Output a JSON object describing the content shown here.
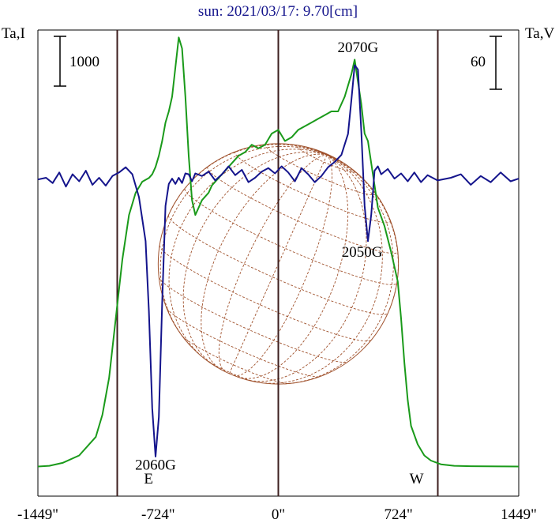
{
  "chart_data": {
    "type": "line",
    "title": "sun: 2021/03/17: 9.70[cm]",
    "left_axis_label": "Ta,I",
    "right_axis_label": "Ta,V",
    "left_scale_label": "1000",
    "right_scale_label": "60",
    "x_ticks": [
      {
        "value": -1449,
        "label": "-1449\""
      },
      {
        "value": -724,
        "label": "-724\""
      },
      {
        "value": 0,
        "label": "0\""
      },
      {
        "value": 724,
        "label": "724\""
      },
      {
        "value": 1449,
        "label": "1449\""
      }
    ],
    "xlim": [
      -1449,
      1449
    ],
    "limb_markers": [
      {
        "value": -724,
        "label": "E"
      },
      {
        "value": 724,
        "label": "W"
      }
    ],
    "annotations": [
      {
        "text": "2060G",
        "x": -740,
        "y": -3300
      },
      {
        "text": "2070G",
        "x": 480,
        "y": 1450
      },
      {
        "text": "2050G",
        "x": 505,
        "y": -880
      }
    ],
    "solar_disk": {
      "radius_arcsec": 724,
      "color": "#a0522d"
    },
    "series": [
      {
        "name": "I",
        "color": "#1a9a1a",
        "ylim": [
          -400,
          5900
        ],
        "x": [
          -1449,
          -1380,
          -1300,
          -1200,
          -1100,
          -1060,
          -1020,
          -980,
          -940,
          -900,
          -860,
          -820,
          -780,
          -760,
          -740,
          -720,
          -700,
          -680,
          -660,
          -640,
          -620,
          -600,
          -580,
          -560,
          -540,
          -520,
          -500,
          -480,
          -460,
          -440,
          -420,
          -400,
          -360,
          -320,
          -280,
          -240,
          -200,
          -160,
          -120,
          -80,
          -40,
          0,
          40,
          80,
          120,
          160,
          200,
          240,
          280,
          320,
          360,
          400,
          440,
          460,
          480,
          500,
          520,
          540,
          560,
          580,
          600,
          640,
          680,
          700,
          720,
          740,
          760,
          780,
          800,
          840,
          880,
          920,
          980,
          1060,
          1160,
          1260,
          1360,
          1449
        ],
        "values": [
          0,
          10,
          50,
          150,
          400,
          700,
          1200,
          2000,
          2800,
          3400,
          3700,
          3850,
          3900,
          3950,
          4050,
          4200,
          4400,
          4650,
          4800,
          5000,
          5400,
          5800,
          5650,
          5000,
          4200,
          3600,
          3400,
          3500,
          3600,
          3650,
          3700,
          3800,
          3900,
          4000,
          4100,
          4200,
          4250,
          4350,
          4300,
          4350,
          4500,
          4550,
          4400,
          4450,
          4550,
          4600,
          4650,
          4700,
          4750,
          4800,
          4800,
          5000,
          5300,
          5500,
          5200,
          4900,
          4500,
          4400,
          4100,
          3800,
          3500,
          3250,
          2900,
          2700,
          2500,
          2000,
          1400,
          900,
          550,
          300,
          150,
          80,
          30,
          10,
          5,
          3,
          2,
          0
        ]
      },
      {
        "name": "V",
        "color": "#14148c",
        "ylim": [
          -3600,
          1700
        ],
        "x": [
          -1449,
          -1400,
          -1360,
          -1320,
          -1280,
          -1240,
          -1200,
          -1160,
          -1120,
          -1080,
          -1040,
          -1000,
          -960,
          -920,
          -880,
          -840,
          -800,
          -780,
          -760,
          -740,
          -720,
          -700,
          -680,
          -660,
          -640,
          -620,
          -600,
          -580,
          -560,
          -540,
          -520,
          -500,
          -460,
          -420,
          -380,
          -340,
          -300,
          -260,
          -220,
          -180,
          -140,
          -100,
          -60,
          -20,
          20,
          60,
          100,
          140,
          180,
          220,
          260,
          300,
          340,
          380,
          420,
          440,
          460,
          480,
          500,
          520,
          540,
          560,
          580,
          600,
          620,
          660,
          700,
          740,
          780,
          820,
          860,
          900,
          960,
          1040,
          1100,
          1160,
          1220,
          1280,
          1340,
          1400,
          1449
        ],
        "values": [
          0,
          20,
          -40,
          80,
          -80,
          60,
          -20,
          100,
          -60,
          20,
          -70,
          40,
          80,
          140,
          60,
          -200,
          -700,
          -1500,
          -2600,
          -3150,
          -2700,
          -1400,
          -300,
          -50,
          10,
          -50,
          20,
          -40,
          70,
          60,
          -20,
          70,
          40,
          90,
          -10,
          60,
          150,
          50,
          110,
          -30,
          20,
          90,
          130,
          70,
          150,
          80,
          -20,
          130,
          60,
          -30,
          40,
          140,
          200,
          280,
          520,
          900,
          1300,
          1250,
          550,
          -300,
          -700,
          -400,
          100,
          150,
          60,
          120,
          10,
          70,
          -20,
          80,
          -30,
          50,
          -10,
          20,
          60,
          -60,
          40,
          -30,
          80,
          -20,
          10
        ]
      }
    ]
  }
}
